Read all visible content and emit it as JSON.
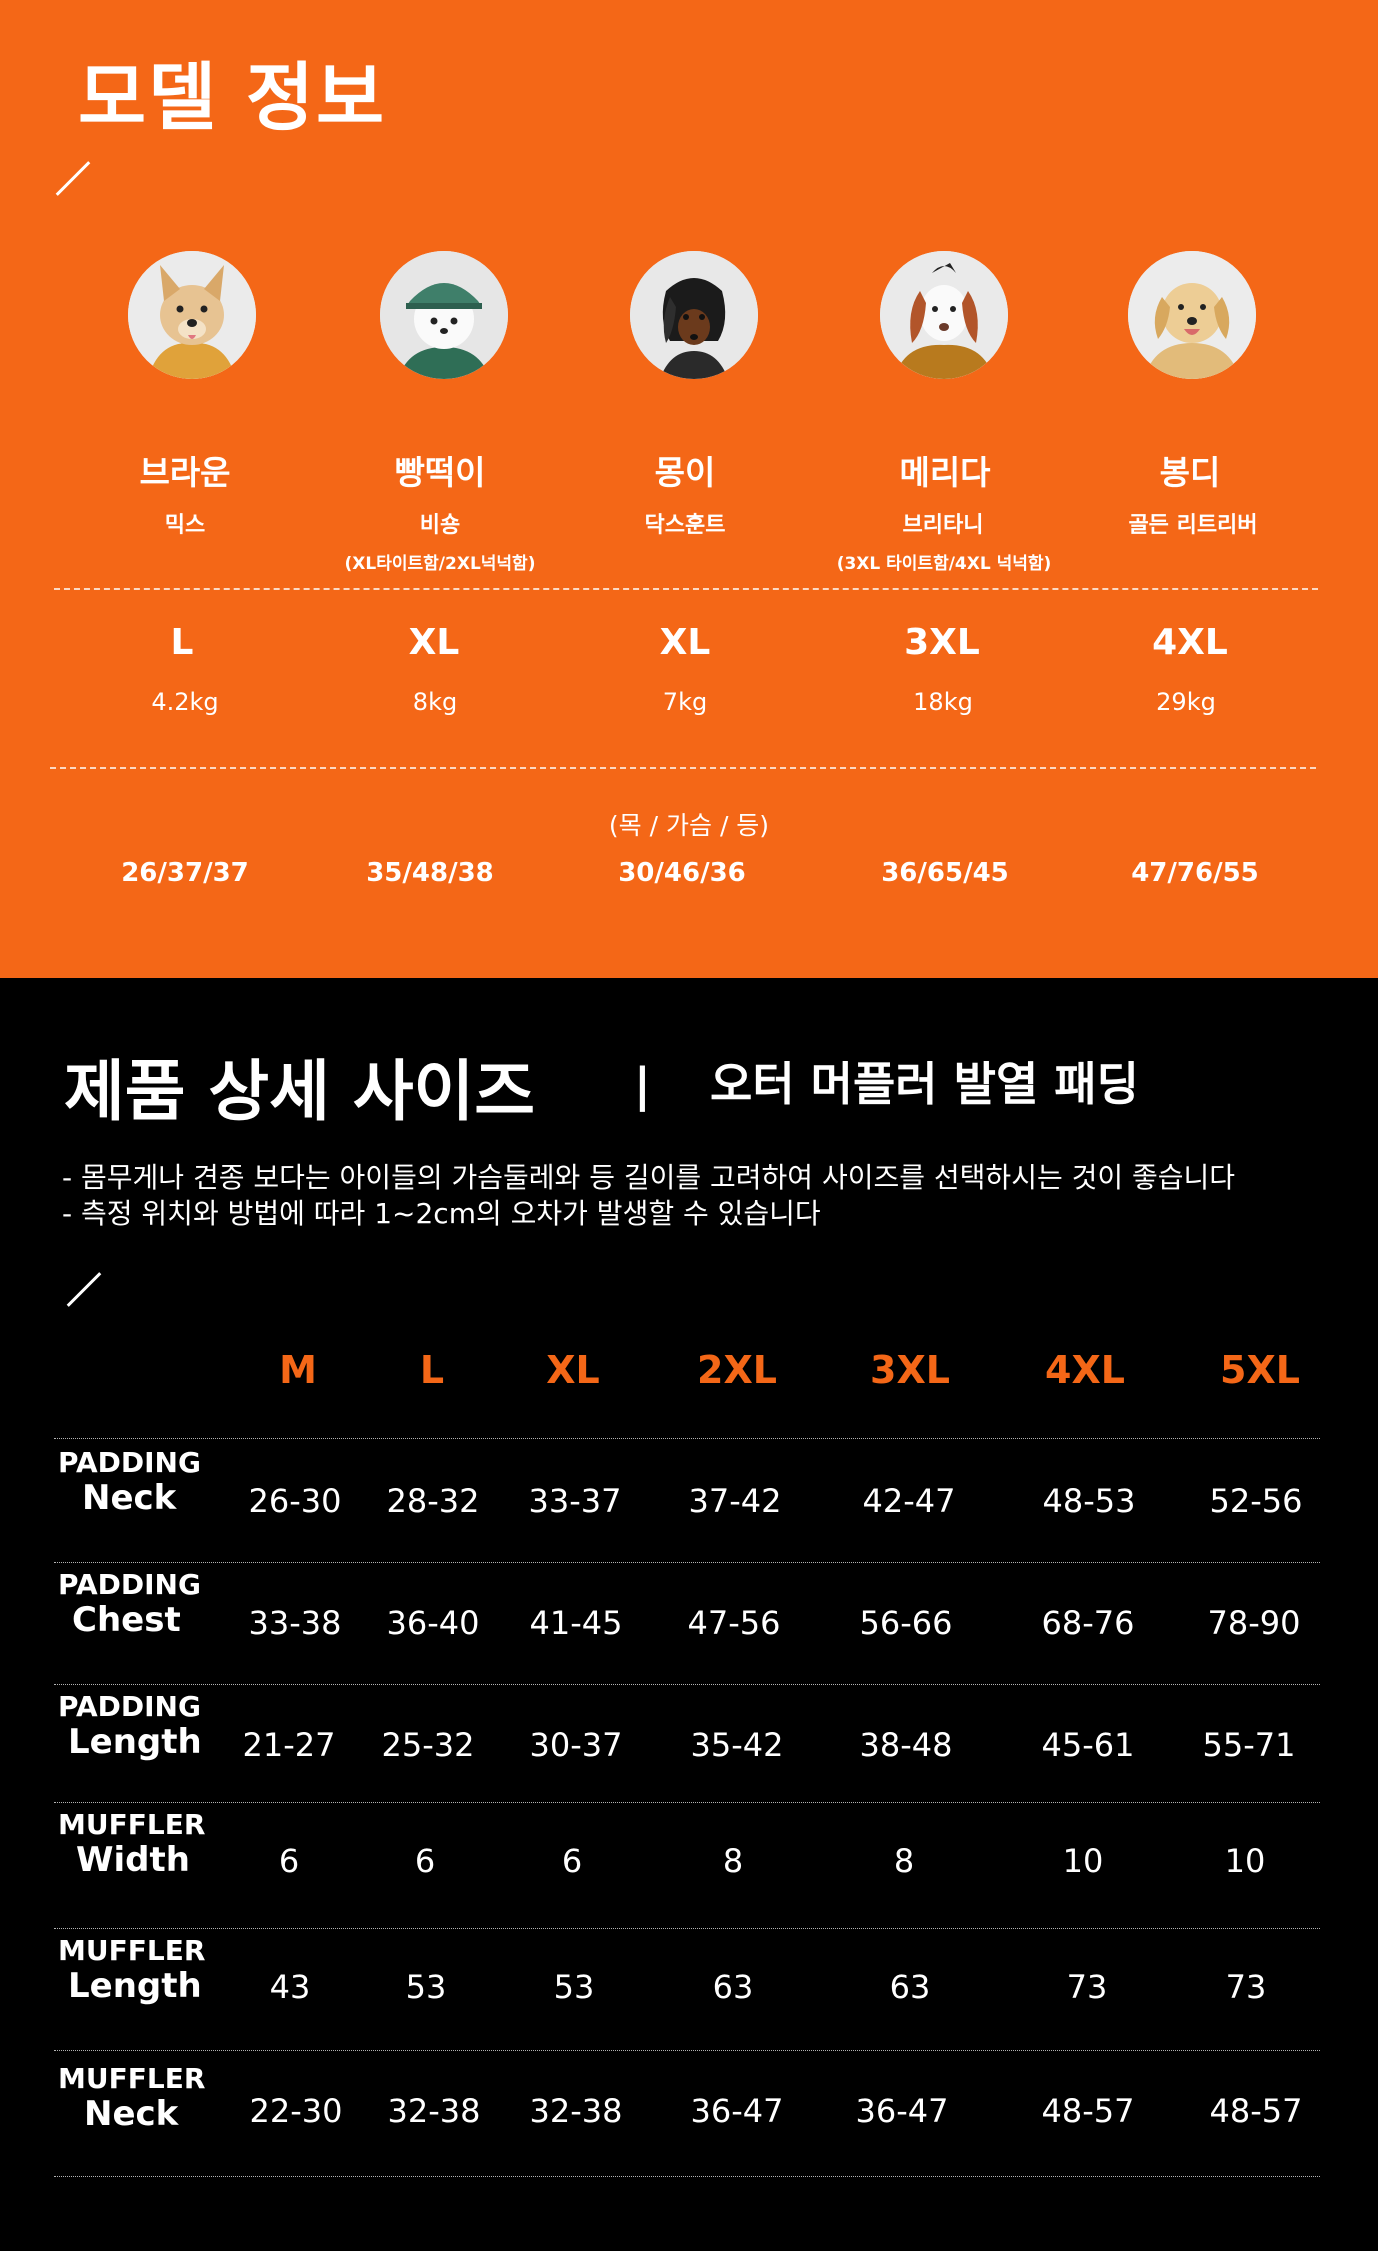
{
  "model_section": {
    "title": "모델 정보",
    "dogs": [
      {
        "name": "브라운",
        "breed": "믹스",
        "note": "",
        "size": "L",
        "weight": "4.2kg",
        "measurements": "26/37/37"
      },
      {
        "name": "빵떡이",
        "breed": "비숑",
        "note": "(XL타이트함/2XL넉넉함)",
        "size": "XL",
        "weight": "8kg",
        "measurements": "35/48/38"
      },
      {
        "name": "몽이",
        "breed": "닥스훈트",
        "note": "",
        "size": "XL",
        "weight": "7kg",
        "measurements": "30/46/36"
      },
      {
        "name": "메리다",
        "breed": "브리타니",
        "note": "(3XL 타이트함/4XL 넉넉함)",
        "size": "3XL",
        "weight": "18kg",
        "measurements": "36/65/45"
      },
      {
        "name": "봉디",
        "breed": "골든 리트리버",
        "note": "",
        "size": "4XL",
        "weight": "29kg",
        "measurements": "47/76/55"
      }
    ],
    "measurement_label": "(목 / 가슴 / 등)"
  },
  "size_section": {
    "title": "제품 상세 사이즈",
    "divider": "|",
    "subtitle": "오터 머플러 발열 패딩",
    "notes": [
      "- 몸무게나 견종 보다는 아이들의 가슴둘레와 등 길이를 고려하여 사이즈를 선택하시는 것이 좋습니다",
      "- 측정 위치와 방법에 따라 1~2cm의 오차가 발생할 수 있습니다"
    ],
    "table": {
      "headers": [
        "M",
        "L",
        "XL",
        "2XL",
        "3XL",
        "4XL",
        "5XL"
      ],
      "rows": [
        {
          "label_top": "PADDING",
          "label_bottom": "Neck",
          "values": [
            "26-30",
            "28-32",
            "33-37",
            "37-42",
            "42-47",
            "48-53",
            "52-56"
          ]
        },
        {
          "label_top": "PADDING",
          "label_bottom": "Chest",
          "values": [
            "33-38",
            "36-40",
            "41-45",
            "47-56",
            "56-66",
            "68-76",
            "78-90"
          ]
        },
        {
          "label_top": "PADDING",
          "label_bottom": "Length",
          "values": [
            "21-27",
            "25-32",
            "30-37",
            "35-42",
            "38-48",
            "45-61",
            "55-71"
          ]
        },
        {
          "label_top": "MUFFLER",
          "label_bottom": "Width",
          "values": [
            "6",
            "6",
            "6",
            "8",
            "8",
            "10",
            "10"
          ]
        },
        {
          "label_top": "MUFFLER",
          "label_bottom": "Length",
          "values": [
            "43",
            "53",
            "53",
            "63",
            "63",
            "73",
            "73"
          ]
        },
        {
          "label_top": "MUFFLER",
          "label_bottom": "Neck",
          "values": [
            "22-30",
            "32-38",
            "32-38",
            "36-47",
            "36-47",
            "48-57",
            "48-57"
          ]
        }
      ]
    }
  },
  "colors": {
    "accent": "#F46717",
    "background_dark": "#000000",
    "text_light": "#FFFFFF"
  },
  "icons": [
    "slash-divider-icon",
    "dog-avatar"
  ]
}
